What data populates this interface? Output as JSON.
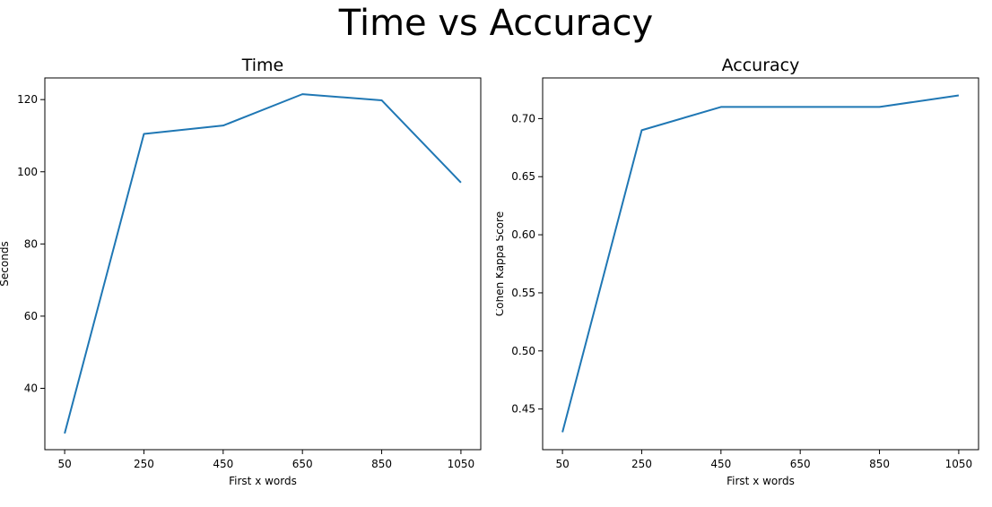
{
  "figure": {
    "title": "Time vs Accuracy"
  },
  "chart_data": [
    {
      "type": "line",
      "title": "Time",
      "xlabel": "First x words",
      "ylabel": "Seconds",
      "x": [
        50,
        250,
        450,
        650,
        850,
        1050
      ],
      "xticks": [
        50,
        250,
        450,
        650,
        850,
        1050
      ],
      "xlim": [
        0,
        1100
      ],
      "yticks": [
        40,
        60,
        80,
        100,
        120
      ],
      "ylim": [
        23,
        126
      ],
      "series": [
        {
          "values": [
            27.5,
            110.5,
            112.8,
            121.5,
            119.8,
            97.0
          ],
          "color": "#1f77b4"
        }
      ],
      "grid": false,
      "legend": "none"
    },
    {
      "type": "line",
      "title": "Accuracy",
      "xlabel": "First x words",
      "ylabel": "Cohen Kappa Score",
      "x": [
        50,
        250,
        450,
        650,
        850,
        1050
      ],
      "xticks": [
        50,
        250,
        450,
        650,
        850,
        1050
      ],
      "xlim": [
        0,
        1100
      ],
      "yticks": [
        0.45,
        0.5,
        0.55,
        0.6,
        0.65,
        0.7
      ],
      "ylim": [
        0.415,
        0.735
      ],
      "series": [
        {
          "values": [
            0.43,
            0.69,
            0.71,
            0.71,
            0.71,
            0.72
          ],
          "color": "#1f77b4"
        }
      ],
      "grid": false,
      "legend": "none"
    }
  ]
}
